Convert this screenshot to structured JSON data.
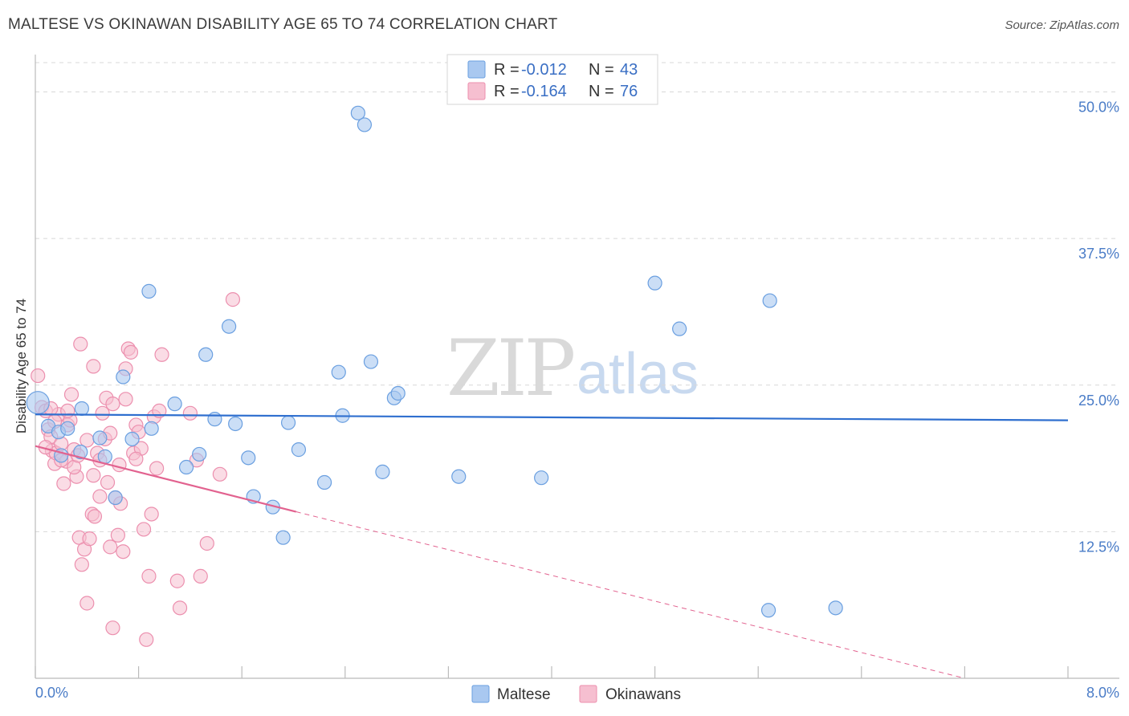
{
  "header": {
    "title": "MALTESE VS OKINAWAN DISABILITY AGE 65 TO 74 CORRELATION CHART",
    "source": "Source: ZipAtlas.com"
  },
  "legend": {
    "maltese": {
      "r_label": "R = ",
      "r_value": "-0.012",
      "n_label": "N = ",
      "n_value": "43"
    },
    "okinawan": {
      "r_label": "R = ",
      "r_value": "-0.164",
      "n_label": "N = ",
      "n_value": "76"
    }
  },
  "bottom_legend": {
    "maltese": "Maltese",
    "okinawans": "Okinawans"
  },
  "watermark": {
    "zip": "ZIP",
    "atlas": "atlas"
  },
  "colors": {
    "maltese_fill": "#a9c8f0",
    "maltese_stroke": "#6a9fe0",
    "maltese_line": "#2f6fcf",
    "okinawan_fill": "#f6bfd0",
    "okinawan_stroke": "#ec8fae",
    "okinawan_line": "#e2628f",
    "axis_text": "#4a7cc7",
    "grid": "#d8d8d8"
  },
  "chart_data": {
    "type": "scatter",
    "title": "MALTESE VS OKINAWAN DISABILITY AGE 65 TO 74 CORRELATION CHART",
    "xlabel": "",
    "ylabel": "Disability Age 65 to 74",
    "xlim": [
      0,
      8
    ],
    "ylim": [
      0,
      52.5
    ],
    "x_tick_labels": {
      "min": "0.0%",
      "max": "8.0%"
    },
    "y_ticks": [
      12.5,
      25.0,
      37.5,
      50.0
    ],
    "y_tick_labels": [
      "12.5%",
      "25.0%",
      "37.5%",
      "50.0%"
    ],
    "series": [
      {
        "name": "Maltese",
        "r": -0.012,
        "n": 43,
        "trend": {
          "x": [
            0,
            8
          ],
          "y": [
            22.5,
            22.0
          ]
        },
        "points": [
          [
            0.02,
            23.5
          ],
          [
            0.1,
            21.5
          ],
          [
            0.18,
            21.0
          ],
          [
            0.25,
            21.3
          ],
          [
            0.36,
            23.0
          ],
          [
            0.62,
            15.4
          ],
          [
            0.68,
            25.7
          ],
          [
            0.88,
            33.0
          ],
          [
            0.9,
            21.3
          ],
          [
            1.08,
            23.4
          ],
          [
            1.17,
            18.0
          ],
          [
            1.27,
            19.1
          ],
          [
            1.32,
            27.6
          ],
          [
            1.39,
            22.1
          ],
          [
            1.5,
            30.0
          ],
          [
            1.55,
            21.7
          ],
          [
            1.65,
            18.8
          ],
          [
            1.69,
            15.5
          ],
          [
            1.84,
            14.6
          ],
          [
            1.92,
            12.0
          ],
          [
            1.96,
            21.8
          ],
          [
            2.04,
            19.5
          ],
          [
            2.24,
            16.7
          ],
          [
            2.35,
            26.1
          ],
          [
            2.38,
            22.4
          ],
          [
            2.5,
            48.2
          ],
          [
            2.55,
            47.2
          ],
          [
            2.6,
            27.0
          ],
          [
            2.69,
            17.6
          ],
          [
            2.78,
            23.9
          ],
          [
            2.81,
            24.3
          ],
          [
            3.28,
            17.2
          ],
          [
            3.92,
            17.1
          ],
          [
            4.8,
            33.7
          ],
          [
            4.99,
            29.8
          ],
          [
            5.69,
            32.2
          ],
          [
            5.68,
            5.8
          ],
          [
            6.2,
            6.0
          ],
          [
            0.35,
            19.3
          ],
          [
            0.75,
            20.4
          ],
          [
            0.5,
            20.5
          ],
          [
            0.2,
            19.0
          ],
          [
            0.54,
            18.9
          ]
        ]
      },
      {
        "name": "Okinawans",
        "r": -0.164,
        "n": 76,
        "trend": {
          "x": [
            0,
            2.02
          ],
          "y": [
            19.8,
            14.2
          ]
        },
        "trend_extended": {
          "x": [
            2.02,
            7.2
          ],
          "y": [
            14.2,
            0
          ]
        },
        "points": [
          [
            0.02,
            25.8
          ],
          [
            0.05,
            23.1
          ],
          [
            0.08,
            22.8
          ],
          [
            0.1,
            21.2
          ],
          [
            0.12,
            20.6
          ],
          [
            0.13,
            19.4
          ],
          [
            0.15,
            18.3
          ],
          [
            0.16,
            19.2
          ],
          [
            0.18,
            22.5
          ],
          [
            0.2,
            20.0
          ],
          [
            0.22,
            16.6
          ],
          [
            0.24,
            18.5
          ],
          [
            0.25,
            21.6
          ],
          [
            0.27,
            22.0
          ],
          [
            0.28,
            24.2
          ],
          [
            0.3,
            19.5
          ],
          [
            0.32,
            17.2
          ],
          [
            0.34,
            12.0
          ],
          [
            0.36,
            9.7
          ],
          [
            0.38,
            11.0
          ],
          [
            0.4,
            6.4
          ],
          [
            0.42,
            11.9
          ],
          [
            0.44,
            14.0
          ],
          [
            0.46,
            13.8
          ],
          [
            0.48,
            19.2
          ],
          [
            0.5,
            18.6
          ],
          [
            0.52,
            22.6
          ],
          [
            0.54,
            20.4
          ],
          [
            0.56,
            16.7
          ],
          [
            0.58,
            11.2
          ],
          [
            0.6,
            4.3
          ],
          [
            0.62,
            15.4
          ],
          [
            0.64,
            12.2
          ],
          [
            0.66,
            14.9
          ],
          [
            0.68,
            10.8
          ],
          [
            0.7,
            26.4
          ],
          [
            0.72,
            28.1
          ],
          [
            0.74,
            27.8
          ],
          [
            0.76,
            19.2
          ],
          [
            0.78,
            21.6
          ],
          [
            0.8,
            21.0
          ],
          [
            0.82,
            19.6
          ],
          [
            0.84,
            12.7
          ],
          [
            0.86,
            3.3
          ],
          [
            0.88,
            8.7
          ],
          [
            0.9,
            14.0
          ],
          [
            0.92,
            22.3
          ],
          [
            0.94,
            17.9
          ],
          [
            0.96,
            22.8
          ],
          [
            0.98,
            27.6
          ],
          [
            1.1,
            8.3
          ],
          [
            1.12,
            6.0
          ],
          [
            1.2,
            22.6
          ],
          [
            1.25,
            18.6
          ],
          [
            1.28,
            8.7
          ],
          [
            1.33,
            11.5
          ],
          [
            1.43,
            17.4
          ],
          [
            1.53,
            32.3
          ],
          [
            0.35,
            28.5
          ],
          [
            0.45,
            26.6
          ],
          [
            0.55,
            23.9
          ],
          [
            0.15,
            21.9
          ],
          [
            0.25,
            22.8
          ],
          [
            0.3,
            18.0
          ],
          [
            0.65,
            18.2
          ],
          [
            0.5,
            15.5
          ],
          [
            0.4,
            20.3
          ],
          [
            0.6,
            23.4
          ],
          [
            0.2,
            18.6
          ],
          [
            0.7,
            23.8
          ],
          [
            0.12,
            23.0
          ],
          [
            0.45,
            17.3
          ],
          [
            0.33,
            19.0
          ],
          [
            0.58,
            20.9
          ],
          [
            0.78,
            18.7
          ],
          [
            0.08,
            19.7
          ]
        ]
      }
    ]
  }
}
